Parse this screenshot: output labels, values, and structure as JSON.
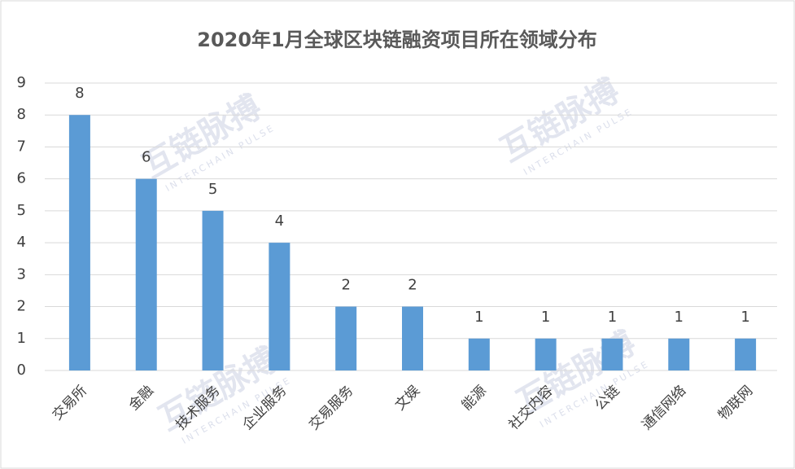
{
  "chart_data": {
    "type": "bar",
    "title": "2020年1月全球区块链融资项目所在领域分布",
    "categories": [
      "交易所",
      "金融",
      "技术服务",
      "企业服务",
      "交易服务",
      "文娱",
      "能源",
      "社交内容",
      "公链",
      "通信网络",
      "物联网"
    ],
    "values": [
      8,
      6,
      5,
      4,
      2,
      2,
      1,
      1,
      1,
      1,
      1
    ],
    "color": "#5b9bd5",
    "ylim": [
      0,
      9
    ],
    "yticks": [
      0,
      1,
      2,
      3,
      4,
      5,
      6,
      7,
      8,
      9
    ],
    "grid": true,
    "watermark": [
      "互链脉搏",
      "INTERCHAIN PULSE"
    ]
  }
}
